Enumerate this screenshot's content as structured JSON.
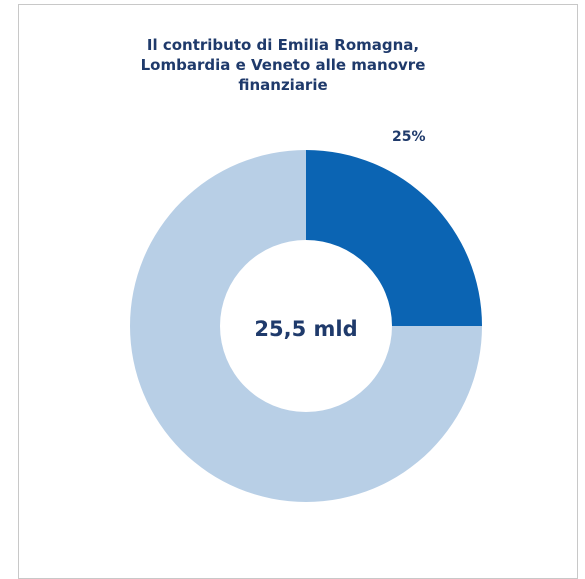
{
  "chart_data": {
    "type": "pie",
    "title": "Il contributo di Emilia  Romagna,\nLombardia  e Veneto alle manovre\nfinanziarie",
    "center_label": "25,5 mld",
    "slices": [
      {
        "value": 25,
        "label": "25%",
        "color": "#0b64b3"
      },
      {
        "value": 75,
        "label": "",
        "color": "#b8cfe6"
      }
    ]
  }
}
